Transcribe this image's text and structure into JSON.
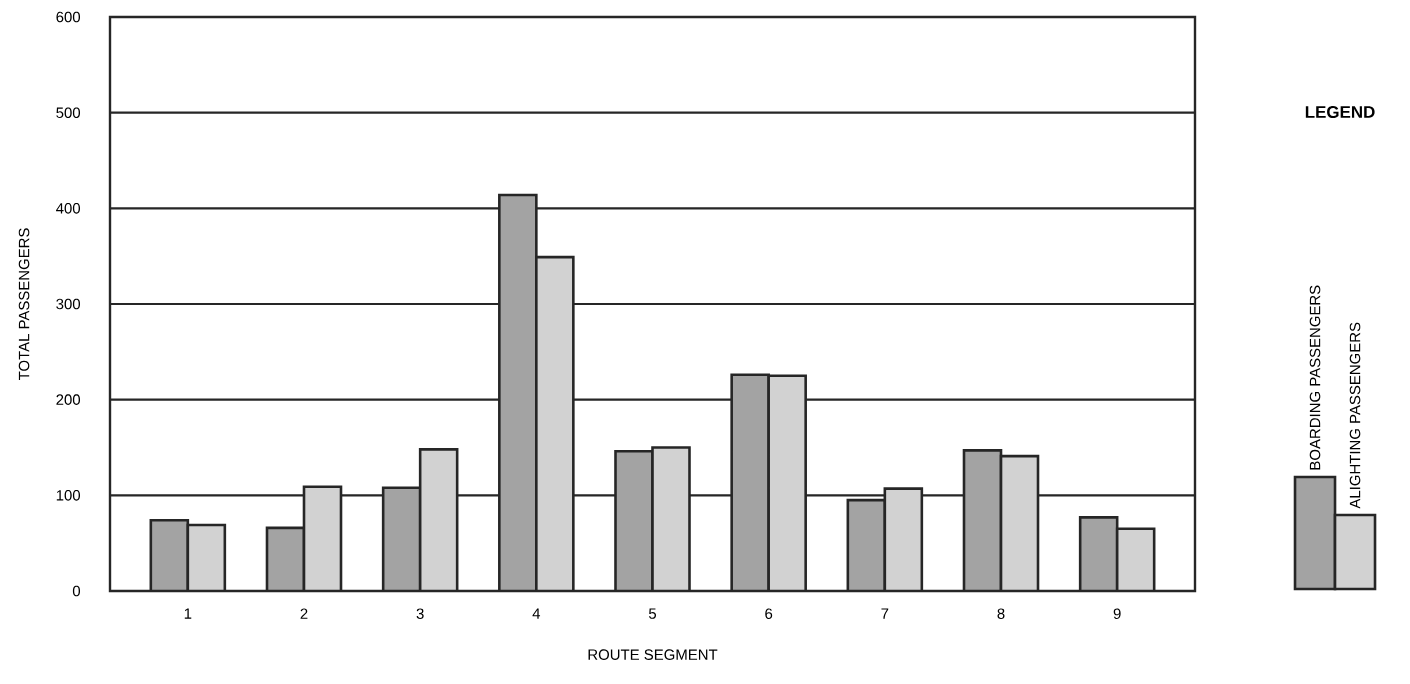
{
  "chart_data": {
    "type": "bar",
    "xlabel": "ROUTE SEGMENT",
    "ylabel": "TOTAL PASSENGERS",
    "legend_title": "LEGEND",
    "categories": [
      "1",
      "2",
      "3",
      "4",
      "5",
      "6",
      "7",
      "8",
      "9"
    ],
    "series": [
      {
        "name": "BOARDING PASSENGERS",
        "color": "#a3a3a3",
        "values": [
          74,
          66,
          108,
          414,
          146,
          226,
          95,
          147,
          77
        ]
      },
      {
        "name": "ALIGHTING PASSENGERS",
        "color": "#d2d2d2",
        "values": [
          69,
          109,
          148,
          349,
          150,
          225,
          107,
          141,
          65
        ]
      }
    ],
    "ylim": [
      0,
      600
    ],
    "yticks": [
      0,
      100,
      200,
      300,
      400,
      500,
      600
    ],
    "grid": "y",
    "legend": "right"
  }
}
